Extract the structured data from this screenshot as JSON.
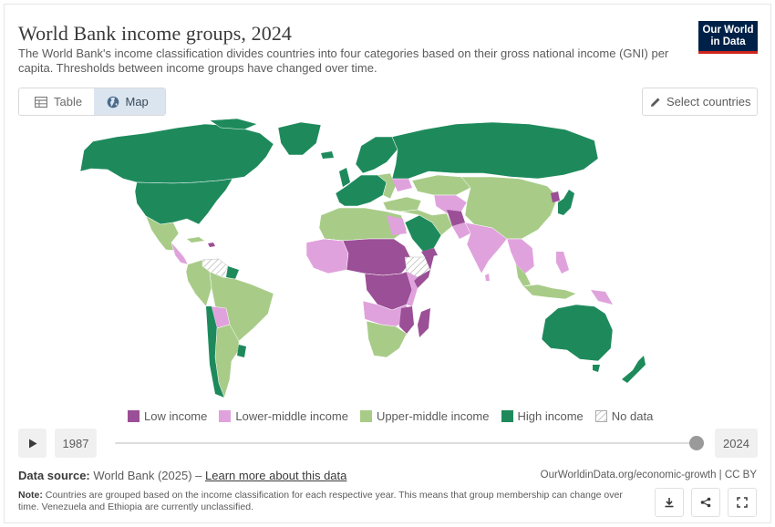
{
  "title": "World Bank income groups, 2024",
  "subtitle": "The World Bank's income classification divides countries into four categories based on their gross national income (GNI) per capita. Thresholds between income groups have changed over time.",
  "logo": {
    "line1": "Our World",
    "line2": "in Data"
  },
  "tabs": [
    {
      "label": "Table",
      "icon": "table-icon",
      "active": false
    },
    {
      "label": "Map",
      "icon": "globe-icon",
      "active": true
    }
  ],
  "select_countries": {
    "label": "Select countries",
    "icon": "pencil-icon"
  },
  "legend": [
    {
      "label": "Low income",
      "color": "#9a4f96"
    },
    {
      "label": "Lower-middle income",
      "color": "#e0a2dc"
    },
    {
      "label": "Upper-middle income",
      "color": "#a8cc88"
    },
    {
      "label": "High income",
      "color": "#1e8a5c"
    },
    {
      "label": "No data",
      "color": "hatched"
    }
  ],
  "timeline": {
    "start_year": "1987",
    "end_year": "2024",
    "selected_position": 1.0
  },
  "source": {
    "label": "Data source:",
    "text": "World Bank (2025) –",
    "link": "Learn more about this data"
  },
  "url": "OurWorldinData.org/economic-growth | CC BY",
  "note": {
    "label": "Note:",
    "text": "Countries are grouped based on the income classification for each respective year. This means that group membership can change over time. Venezuela and Ethiopia are currently unclassified."
  },
  "actions": [
    {
      "name": "download-button",
      "icon": "download-icon"
    },
    {
      "name": "share-button",
      "icon": "share-icon"
    },
    {
      "name": "fullscreen-button",
      "icon": "fullscreen-icon"
    }
  ]
}
